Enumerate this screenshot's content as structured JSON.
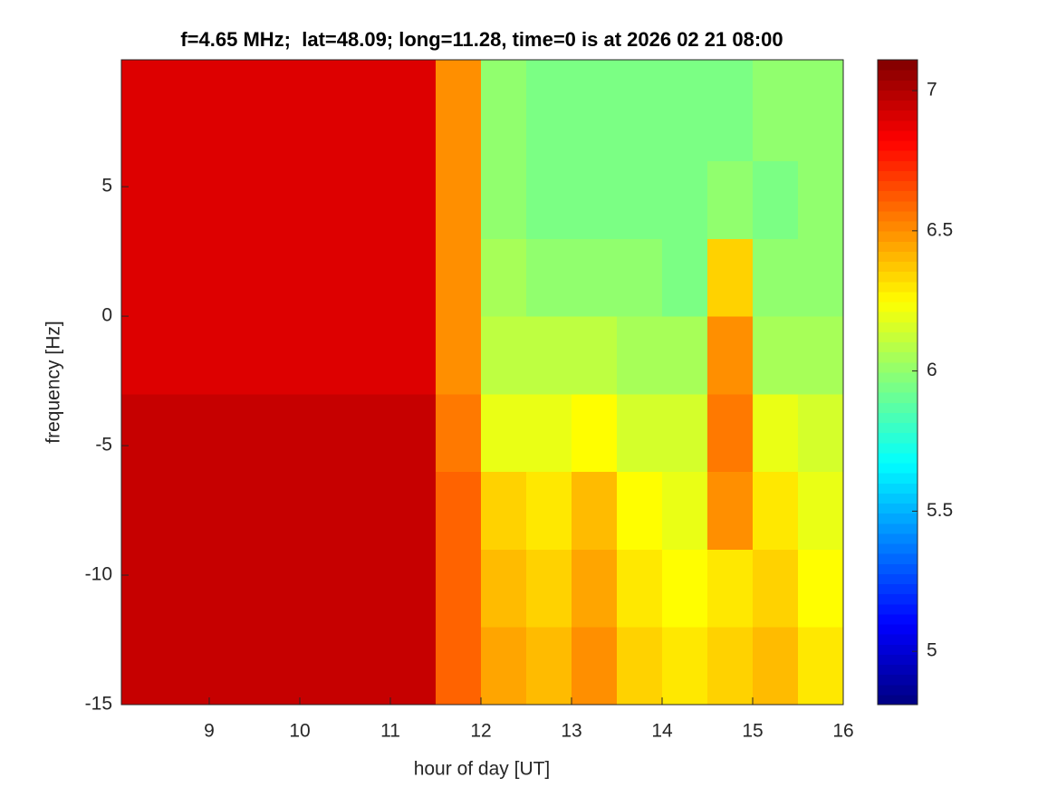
{
  "chart_data": {
    "type": "heatmap",
    "title": "f=4.65 MHz;  lat=48.09; long=11.28, time=0 is at 2026 02 21 08:00",
    "x_label": "hour of day [UT]",
    "y_label": "frequency [Hz]",
    "x": [
      8.25,
      8.75,
      9.25,
      9.75,
      10.25,
      10.75,
      11.25,
      11.75,
      12.25,
      12.75,
      13.25,
      13.75,
      14.25,
      14.75,
      15.25,
      15.75
    ],
    "y": [
      -13.5,
      -10.5,
      -7.5,
      -4.5,
      -1.5,
      1.5,
      4.5,
      7.5
    ],
    "z": [
      [
        6.95,
        6.95,
        6.95,
        6.95,
        6.95,
        6.95,
        6.95,
        6.6,
        6.45,
        6.4,
        6.5,
        6.35,
        6.3,
        6.35,
        6.4,
        6.3
      ],
      [
        6.95,
        6.95,
        6.95,
        6.95,
        6.95,
        6.95,
        6.95,
        6.6,
        6.4,
        6.35,
        6.45,
        6.3,
        6.25,
        6.3,
        6.35,
        6.25
      ],
      [
        6.95,
        6.95,
        6.95,
        6.95,
        6.95,
        6.95,
        6.95,
        6.6,
        6.35,
        6.3,
        6.4,
        6.25,
        6.2,
        6.5,
        6.3,
        6.2
      ],
      [
        6.95,
        6.95,
        6.95,
        6.95,
        6.95,
        6.95,
        6.95,
        6.55,
        6.2,
        6.2,
        6.25,
        6.15,
        6.15,
        6.55,
        6.2,
        6.15
      ],
      [
        6.9,
        6.9,
        6.9,
        6.9,
        6.9,
        6.9,
        6.9,
        6.5,
        6.1,
        6.1,
        6.1,
        6.05,
        6.05,
        6.5,
        6.05,
        6.05
      ],
      [
        6.9,
        6.9,
        6.9,
        6.9,
        6.9,
        6.9,
        6.9,
        6.5,
        6.05,
        6.0,
        6.0,
        6.0,
        5.95,
        6.35,
        6.0,
        6.0
      ],
      [
        6.9,
        6.9,
        6.9,
        6.9,
        6.9,
        6.9,
        6.9,
        6.5,
        6.0,
        5.95,
        5.95,
        5.95,
        5.95,
        6.0,
        5.95,
        6.0
      ],
      [
        6.9,
        6.9,
        6.9,
        6.9,
        6.9,
        6.9,
        6.9,
        6.5,
        6.0,
        5.95,
        5.95,
        5.95,
        5.95,
        5.95,
        6.0,
        6.0
      ]
    ],
    "xlim": [
      8.03,
      16
    ],
    "xticks": [
      9,
      10,
      11,
      12,
      13,
      14,
      15,
      16
    ],
    "ylim": [
      -15,
      9.9
    ],
    "yticks": [
      -15,
      -10,
      -5,
      0,
      5
    ],
    "colormap": "jet",
    "clim": [
      4.81,
      7.11
    ],
    "cticks": [
      5,
      5.5,
      6,
      6.5,
      7
    ]
  }
}
